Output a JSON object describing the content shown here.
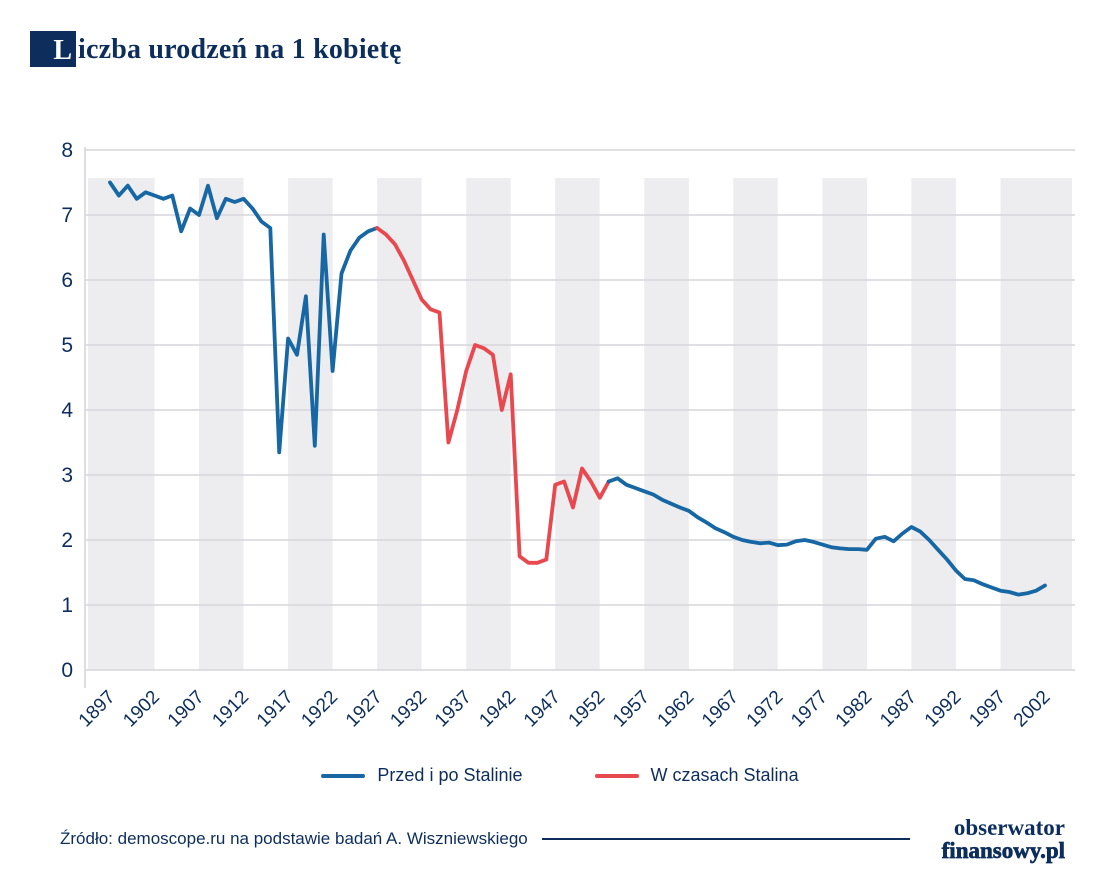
{
  "header": {
    "title": "Liczba urodzeń na 1 kobietę",
    "title_initial": "L",
    "title_rest": "iczba urodzeń na 1 kobietę"
  },
  "footer": {
    "source": "Źródło: demoscope.ru na podstawie badań A. Wiszniewskiego",
    "logo_line1": "obserwator",
    "logo_line2": "finansowy.pl"
  },
  "colors": {
    "navy": "#0d2e5c",
    "blue_line": "#1667a3",
    "red_line": "#e8484e",
    "gridline": "#d6d6db",
    "band": "#ededf0"
  },
  "chart_data": {
    "type": "line",
    "title": "Liczba urodzeń na 1 kobietę",
    "xlabel": "",
    "ylabel": "",
    "ylim": [
      0,
      8
    ],
    "y_ticks": [
      8,
      7,
      6,
      5,
      4,
      3,
      2,
      1,
      0
    ],
    "x_ticks": [
      1897,
      1902,
      1907,
      1912,
      1917,
      1922,
      1927,
      1932,
      1937,
      1942,
      1947,
      1952,
      1957,
      1962,
      1967,
      1972,
      1977,
      1982,
      1987,
      1992,
      1997,
      2002
    ],
    "x_range": [
      1897,
      2002
    ],
    "x_tick_rotation": -45,
    "grid": "horizontal",
    "background_bands": "alternating 5-year vertical stripes",
    "legend_position": "bottom",
    "legend": [
      {
        "label": "Przed i po Stalinie",
        "color": "#1667a3"
      },
      {
        "label": "W czasach Stalina",
        "color": "#e8484e"
      }
    ],
    "series": [
      {
        "label": "Przed i po Stalinie",
        "segment": "1897-1927",
        "color": "#1667a3",
        "points": [
          [
            1897,
            7.5
          ],
          [
            1898,
            7.3
          ],
          [
            1899,
            7.45
          ],
          [
            1900,
            7.25
          ],
          [
            1901,
            7.35
          ],
          [
            1902,
            7.3
          ],
          [
            1903,
            7.25
          ],
          [
            1904,
            7.3
          ],
          [
            1905,
            6.75
          ],
          [
            1906,
            7.1
          ],
          [
            1907,
            7.0
          ],
          [
            1908,
            7.45
          ],
          [
            1909,
            6.95
          ],
          [
            1910,
            7.25
          ],
          [
            1911,
            7.2
          ],
          [
            1912,
            7.25
          ],
          [
            1913,
            7.1
          ],
          [
            1914,
            6.9
          ],
          [
            1915,
            6.8
          ],
          [
            1916,
            3.35
          ],
          [
            1917,
            5.1
          ],
          [
            1918,
            4.85
          ],
          [
            1919,
            5.75
          ],
          [
            1920,
            3.45
          ],
          [
            1921,
            6.7
          ],
          [
            1922,
            4.6
          ],
          [
            1923,
            6.1
          ],
          [
            1924,
            6.45
          ],
          [
            1925,
            6.65
          ],
          [
            1926,
            6.75
          ],
          [
            1927,
            6.8
          ]
        ]
      },
      {
        "label": "W czasach Stalina",
        "segment": "1927-1953",
        "color": "#e8484e",
        "points": [
          [
            1927,
            6.8
          ],
          [
            1928,
            6.7
          ],
          [
            1929,
            6.55
          ],
          [
            1930,
            6.3
          ],
          [
            1931,
            6.0
          ],
          [
            1932,
            5.7
          ],
          [
            1933,
            5.55
          ],
          [
            1934,
            5.5
          ],
          [
            1935,
            3.5
          ],
          [
            1936,
            4.0
          ],
          [
            1937,
            4.6
          ],
          [
            1938,
            5.0
          ],
          [
            1939,
            4.95
          ],
          [
            1940,
            4.85
          ],
          [
            1941,
            4.0
          ],
          [
            1942,
            4.55
          ],
          [
            1943,
            1.75
          ],
          [
            1944,
            1.65
          ],
          [
            1945,
            1.65
          ],
          [
            1946,
            1.7
          ],
          [
            1947,
            2.85
          ],
          [
            1948,
            2.9
          ],
          [
            1949,
            2.5
          ],
          [
            1950,
            3.1
          ],
          [
            1951,
            2.9
          ],
          [
            1952,
            2.65
          ],
          [
            1953,
            2.9
          ]
        ]
      },
      {
        "label": "Przed i po Stalinie",
        "segment": "1953-2002",
        "color": "#1667a3",
        "points": [
          [
            1953,
            2.9
          ],
          [
            1954,
            2.95
          ],
          [
            1955,
            2.85
          ],
          [
            1956,
            2.8
          ],
          [
            1957,
            2.75
          ],
          [
            1958,
            2.7
          ],
          [
            1959,
            2.62
          ],
          [
            1960,
            2.56
          ],
          [
            1961,
            2.5
          ],
          [
            1962,
            2.45
          ],
          [
            1963,
            2.35
          ],
          [
            1964,
            2.27
          ],
          [
            1965,
            2.18
          ],
          [
            1966,
            2.12
          ],
          [
            1967,
            2.05
          ],
          [
            1968,
            2.0
          ],
          [
            1969,
            1.97
          ],
          [
            1970,
            1.95
          ],
          [
            1971,
            1.96
          ],
          [
            1972,
            1.92
          ],
          [
            1973,
            1.93
          ],
          [
            1974,
            1.98
          ],
          [
            1975,
            2.0
          ],
          [
            1976,
            1.97
          ],
          [
            1977,
            1.93
          ],
          [
            1978,
            1.89
          ],
          [
            1979,
            1.87
          ],
          [
            1980,
            1.86
          ],
          [
            1981,
            1.86
          ],
          [
            1982,
            1.85
          ],
          [
            1983,
            2.02
          ],
          [
            1984,
            2.05
          ],
          [
            1985,
            1.98
          ],
          [
            1986,
            2.1
          ],
          [
            1987,
            2.2
          ],
          [
            1988,
            2.13
          ],
          [
            1989,
            2.0
          ],
          [
            1990,
            1.85
          ],
          [
            1991,
            1.7
          ],
          [
            1992,
            1.53
          ],
          [
            1993,
            1.4
          ],
          [
            1994,
            1.38
          ],
          [
            1995,
            1.32
          ],
          [
            1996,
            1.27
          ],
          [
            1997,
            1.22
          ],
          [
            1998,
            1.2
          ],
          [
            1999,
            1.16
          ],
          [
            2000,
            1.18
          ],
          [
            2001,
            1.22
          ],
          [
            2002,
            1.3
          ]
        ]
      }
    ]
  }
}
